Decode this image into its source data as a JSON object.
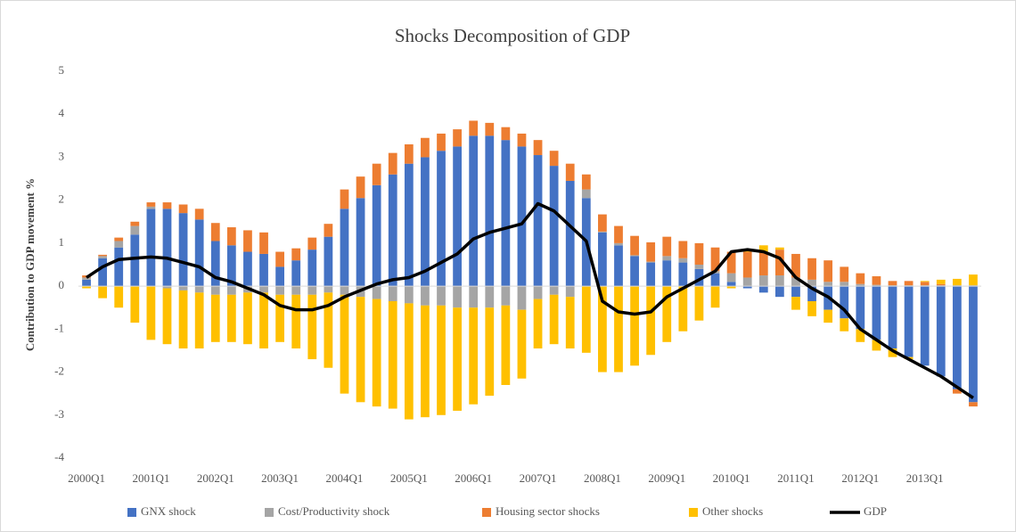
{
  "chart_data": {
    "type": "bar",
    "title": "Shocks Decomposition of GDP",
    "y_label": "Contribution to GDP movement %",
    "categories": [
      "2000Q1",
      null,
      null,
      null,
      "2001Q1",
      null,
      null,
      null,
      "2002Q1",
      null,
      null,
      null,
      "2003Q1",
      null,
      null,
      null,
      "2004Q1",
      null,
      null,
      null,
      "2005Q1",
      null,
      null,
      null,
      "2006Q1",
      null,
      null,
      null,
      "2007Q1",
      null,
      null,
      null,
      "2008Q1",
      null,
      null,
      null,
      "2009Q1",
      null,
      null,
      null,
      "2010Q1",
      null,
      null,
      null,
      "2011Q1",
      null,
      null,
      null,
      "2012Q1",
      null,
      null,
      null,
      "2013Q1",
      null,
      null,
      null
    ],
    "ylim": [
      -4,
      5
    ],
    "yticks": [
      -4,
      -3,
      -2,
      -1,
      0,
      1,
      2,
      3,
      4,
      5
    ],
    "series": [
      {
        "name": "GNX shock",
        "color": "#4472c4",
        "values": [
          0.15,
          0.65,
          0.9,
          1.2,
          1.8,
          1.8,
          1.7,
          1.55,
          1.05,
          0.95,
          0.8,
          0.75,
          0.45,
          0.6,
          0.85,
          1.15,
          1.8,
          2.05,
          2.35,
          2.6,
          2.85,
          3.0,
          3.15,
          3.25,
          3.5,
          3.5,
          3.4,
          3.25,
          3.05,
          2.8,
          2.45,
          2.05,
          1.25,
          0.95,
          0.7,
          0.55,
          0.6,
          0.55,
          0.4,
          0.3,
          0.1,
          -0.05,
          -0.15,
          -0.25,
          -0.25,
          -0.35,
          -0.55,
          -0.75,
          -1.0,
          -1.25,
          -1.45,
          -1.65,
          -1.85,
          -2.1,
          -2.4,
          -2.7
        ]
      },
      {
        "name": "Cost/Productivity shock",
        "color": "#a5a5a5",
        "values": [
          0.05,
          0.05,
          0.15,
          0.2,
          0.05,
          -0.05,
          -0.1,
          -0.15,
          -0.2,
          -0.2,
          -0.15,
          -0.15,
          -0.2,
          -0.2,
          -0.2,
          -0.15,
          -0.2,
          -0.25,
          -0.3,
          -0.35,
          -0.4,
          -0.45,
          -0.45,
          -0.5,
          -0.5,
          -0.5,
          -0.45,
          -0.55,
          -0.3,
          -0.2,
          -0.25,
          0.2,
          0.02,
          0.05,
          0.02,
          0.02,
          0.1,
          0.1,
          0.1,
          0.05,
          0.2,
          0.2,
          0.25,
          0.25,
          0.2,
          0.15,
          0.1,
          0.1,
          0.05,
          0.03,
          0.02,
          0.02,
          0.02,
          0.02,
          0.02,
          0.02
        ]
      },
      {
        "name": "Housing sector shocks",
        "color": "#ed7d31",
        "values": [
          0.05,
          0.03,
          0.08,
          0.1,
          0.1,
          0.15,
          0.2,
          0.25,
          0.42,
          0.42,
          0.5,
          0.5,
          0.35,
          0.28,
          0.28,
          0.3,
          0.45,
          0.5,
          0.5,
          0.5,
          0.45,
          0.45,
          0.4,
          0.4,
          0.35,
          0.3,
          0.3,
          0.3,
          0.35,
          0.35,
          0.4,
          0.35,
          0.4,
          0.4,
          0.45,
          0.45,
          0.45,
          0.4,
          0.5,
          0.55,
          0.5,
          0.6,
          0.55,
          0.6,
          0.55,
          0.5,
          0.5,
          0.35,
          0.25,
          0.2,
          0.1,
          0.1,
          0.08,
          0.03,
          -0.1,
          -0.1
        ]
      },
      {
        "name": "Other shocks",
        "color": "#ffc000",
        "values": [
          -0.05,
          -0.28,
          -0.5,
          -0.85,
          -1.25,
          -1.3,
          -1.35,
          -1.3,
          -1.1,
          -1.1,
          -1.2,
          -1.3,
          -1.1,
          -1.25,
          -1.5,
          -1.75,
          -2.3,
          -2.45,
          -2.5,
          -2.5,
          -2.7,
          -2.6,
          -2.55,
          -2.4,
          -2.25,
          -2.05,
          -1.85,
          -1.6,
          -1.15,
          -1.15,
          -1.2,
          -1.55,
          -2.0,
          -2.0,
          -1.85,
          -1.6,
          -1.3,
          -1.05,
          -0.8,
          -0.5,
          -0.05,
          0.05,
          0.15,
          0.05,
          -0.3,
          -0.35,
          -0.3,
          -0.3,
          -0.3,
          -0.25,
          -0.2,
          -0.05,
          0.02,
          0.1,
          0.15,
          0.25
        ]
      },
      {
        "name": "GDP",
        "color": "#000000",
        "type": "line",
        "values": [
          0.2,
          0.45,
          0.62,
          0.65,
          0.68,
          0.65,
          0.55,
          0.45,
          0.2,
          0.1,
          -0.05,
          -0.2,
          -0.45,
          -0.55,
          -0.55,
          -0.45,
          -0.25,
          -0.1,
          0.05,
          0.15,
          0.2,
          0.35,
          0.55,
          0.75,
          1.1,
          1.25,
          1.35,
          1.45,
          1.92,
          1.75,
          1.4,
          1.05,
          -0.35,
          -0.6,
          -0.65,
          -0.6,
          -0.25,
          -0.05,
          0.15,
          0.35,
          0.8,
          0.85,
          0.8,
          0.65,
          0.2,
          -0.05,
          -0.25,
          -0.55,
          -1.0,
          -1.25,
          -1.5,
          -1.7,
          -1.9,
          -2.1,
          -2.35,
          -2.6
        ]
      }
    ]
  }
}
